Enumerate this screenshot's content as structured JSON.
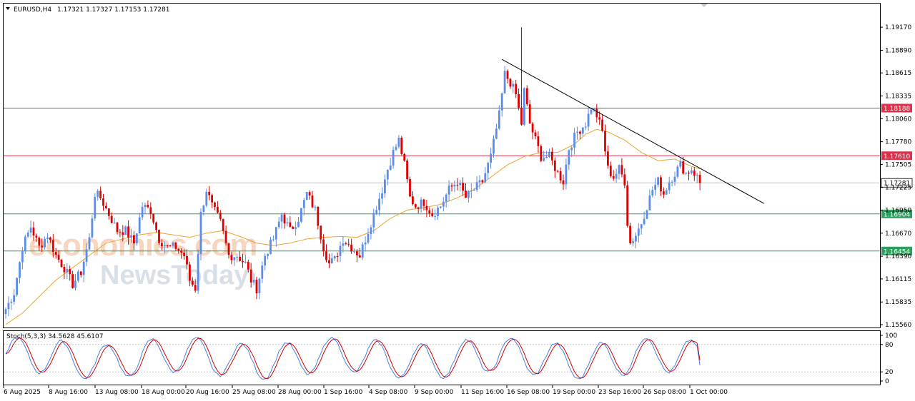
{
  "header": {
    "symbol_timeframe": "EURUSD,H4",
    "ohlc_values": "1.17321 1.17327 1.17153 1.17281"
  },
  "stochastic": {
    "label": "Stoch(5,3,3) 34.5628 45.6107",
    "k_value": 34.5628,
    "d_value": 45.6107,
    "levels": [
      80,
      20
    ],
    "axis_labels": [
      "100",
      "80",
      "20",
      "0"
    ]
  },
  "watermark": {
    "brand_top": "economies.com",
    "brand_bottom": "NewsToday"
  },
  "colors": {
    "bull_candle": "#5b8de8",
    "bear_candle": "#e00000",
    "moving_average": "#f0a030",
    "resistance_line": "#d9324a",
    "support_line": "#2f9e5e",
    "trendline": "#000000",
    "stoch_main": "#4a7ee8",
    "stoch_signal": "#d00000"
  },
  "chart_data": {
    "type": "candlestick",
    "symbol": "EURUSD",
    "timeframe": "H4",
    "ylim": [
      1.1556,
      1.1937
    ],
    "y_ticks": [
      "1.19170",
      "1.18890",
      "1.18615",
      "1.18335",
      "1.18060",
      "1.17780",
      "1.17505",
      "1.17225",
      "1.16950",
      "1.16670",
      "1.16390",
      "1.16115",
      "1.15835",
      "1.15560"
    ],
    "x_tick_labels": [
      "6 Aug 2025",
      "8 Aug 16:00",
      "13 Aug 08:00",
      "18 Aug 00:00",
      "20 Aug 16:00",
      "25 Aug 08:00",
      "28 Aug 00:00",
      "1 Sep 16:00",
      "4 Sep 08:00",
      "9 Sep 00:00",
      "11 Sep 16:00",
      "16 Sep 08:00",
      "19 Sep 00:00",
      "23 Sep 16:00",
      "26 Sep 08:00",
      "1 Oct 00:00"
    ],
    "horizontal_levels": [
      {
        "label": "1.18188",
        "value": 1.18188,
        "kind": "resistance"
      },
      {
        "label": "1.17610",
        "value": 1.1761,
        "kind": "resistance"
      },
      {
        "label": "1.16904",
        "value": 1.16904,
        "kind": "support"
      },
      {
        "label": "1.16454",
        "value": 1.16454,
        "kind": "support"
      }
    ],
    "current_price": {
      "label": "1.17281",
      "value": 1.17281
    },
    "close_path": [
      [
        0,
        1.1575
      ],
      [
        3,
        1.1595
      ],
      [
        6,
        1.165
      ],
      [
        9,
        1.1675
      ],
      [
        12,
        1.165
      ],
      [
        15,
        1.1665
      ],
      [
        18,
        1.164
      ],
      [
        21,
        1.1625
      ],
      [
        24,
        1.1605
      ],
      [
        27,
        1.162
      ],
      [
        30,
        1.166
      ],
      [
        32,
        1.1715
      ],
      [
        34,
        1.171
      ],
      [
        37,
        1.169
      ],
      [
        40,
        1.167
      ],
      [
        43,
        1.167
      ],
      [
        46,
        1.1655
      ],
      [
        49,
        1.17
      ],
      [
        52,
        1.1695
      ],
      [
        55,
        1.166
      ],
      [
        58,
        1.165
      ],
      [
        61,
        1.165
      ],
      [
        64,
        1.164
      ],
      [
        66,
        1.161
      ],
      [
        68,
        1.16
      ],
      [
        70,
        1.169
      ],
      [
        72,
        1.172
      ],
      [
        74,
        1.17
      ],
      [
        77,
        1.168
      ],
      [
        80,
        1.164
      ],
      [
        83,
        1.164
      ],
      [
        86,
        1.163
      ],
      [
        88,
        1.161
      ],
      [
        90,
        1.16
      ],
      [
        93,
        1.164
      ],
      [
        96,
        1.166
      ],
      [
        99,
        1.169
      ],
      [
        102,
        1.167
      ],
      [
        105,
        1.1685
      ],
      [
        108,
        1.1715
      ],
      [
        111,
        1.1695
      ],
      [
        114,
        1.165
      ],
      [
        116,
        1.163
      ],
      [
        118,
        1.1635
      ],
      [
        121,
        1.166
      ],
      [
        124,
        1.165
      ],
      [
        127,
        1.164
      ],
      [
        130,
        1.167
      ],
      [
        133,
        1.17
      ],
      [
        135,
        1.172
      ],
      [
        137,
        1.1745
      ],
      [
        139,
        1.1765
      ],
      [
        141,
        1.178
      ],
      [
        143,
        1.175
      ],
      [
        145,
        1.171
      ],
      [
        147,
        1.17
      ],
      [
        150,
        1.1705
      ],
      [
        153,
        1.169
      ],
      [
        156,
        1.17
      ],
      [
        159,
        1.172
      ],
      [
        162,
        1.173
      ],
      [
        165,
        1.171
      ],
      [
        168,
        1.172
      ],
      [
        171,
        1.173
      ],
      [
        174,
        1.176
      ],
      [
        177,
        1.181
      ],
      [
        179,
        1.186
      ],
      [
        181,
        1.185
      ],
      [
        183,
        1.1835
      ],
      [
        185,
        1.18
      ],
      [
        186,
        1.184
      ],
      [
        188,
        1.18
      ],
      [
        190,
        1.178
      ],
      [
        192,
        1.176
      ],
      [
        195,
        1.176
      ],
      [
        198,
        1.174
      ],
      [
        200,
        1.173
      ],
      [
        202,
        1.177
      ],
      [
        205,
        1.179
      ],
      [
        208,
        1.18
      ],
      [
        210,
        1.182
      ],
      [
        212,
        1.181
      ],
      [
        214,
        1.179
      ],
      [
        216,
        1.1745
      ],
      [
        218,
        1.1735
      ],
      [
        220,
        1.1745
      ],
      [
        222,
        1.173
      ],
      [
        223,
        1.168
      ],
      [
        224,
        1.1655
      ],
      [
        226,
        1.1665
      ],
      [
        228,
        1.168
      ],
      [
        230,
        1.17
      ],
      [
        232,
        1.172
      ],
      [
        234,
        1.173
      ],
      [
        236,
        1.1715
      ],
      [
        238,
        1.173
      ],
      [
        240,
        1.174
      ],
      [
        242,
        1.175
      ],
      [
        244,
        1.174
      ],
      [
        246,
        1.1745
      ],
      [
        248,
        1.1735
      ],
      [
        249,
        1.1728
      ]
    ],
    "moving_average_path": [
      [
        0,
        1.1556
      ],
      [
        6,
        1.157
      ],
      [
        12,
        1.159
      ],
      [
        18,
        1.161
      ],
      [
        24,
        1.1625
      ],
      [
        30,
        1.164
      ],
      [
        36,
        1.1655
      ],
      [
        42,
        1.166
      ],
      [
        48,
        1.1665
      ],
      [
        54,
        1.1668
      ],
      [
        60,
        1.1665
      ],
      [
        66,
        1.1662
      ],
      [
        72,
        1.1667
      ],
      [
        78,
        1.167
      ],
      [
        84,
        1.1663
      ],
      [
        90,
        1.1655
      ],
      [
        96,
        1.1652
      ],
      [
        102,
        1.1655
      ],
      [
        108,
        1.166
      ],
      [
        114,
        1.1662
      ],
      [
        120,
        1.1663
      ],
      [
        126,
        1.1662
      ],
      [
        132,
        1.167
      ],
      [
        138,
        1.1685
      ],
      [
        144,
        1.1695
      ],
      [
        150,
        1.1698
      ],
      [
        156,
        1.1702
      ],
      [
        162,
        1.171
      ],
      [
        168,
        1.172
      ],
      [
        174,
        1.1735
      ],
      [
        180,
        1.175
      ],
      [
        186,
        1.176
      ],
      [
        192,
        1.1765
      ],
      [
        198,
        1.1765
      ],
      [
        204,
        1.1775
      ],
      [
        208,
        1.1787
      ],
      [
        212,
        1.1793
      ],
      [
        216,
        1.179
      ],
      [
        222,
        1.178
      ],
      [
        228,
        1.1765
      ],
      [
        234,
        1.1755
      ],
      [
        240,
        1.1757
      ],
      [
        246,
        1.1748
      ],
      [
        249,
        1.1745
      ]
    ],
    "trendline": {
      "start": [
        178,
        1.1878
      ],
      "end": [
        272,
        1.1703
      ]
    },
    "spike_high": {
      "index": 185,
      "value": 1.1917
    }
  }
}
